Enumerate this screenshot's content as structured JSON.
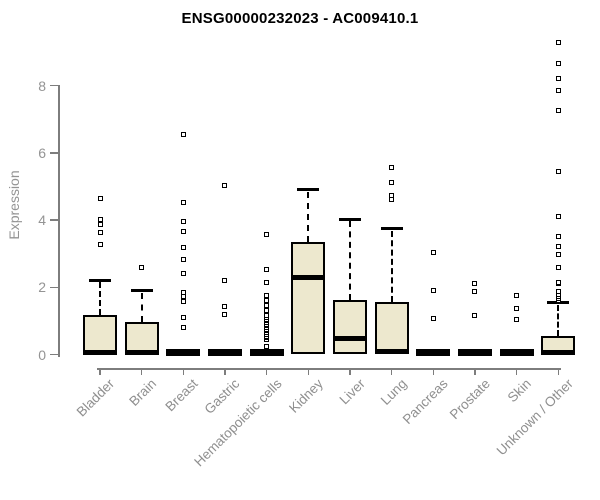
{
  "title": "ENSG00000232023 - AC009410.1",
  "colors": {
    "background": "#ffffff",
    "title": "#000000",
    "box_fill": "#EDE8CE",
    "box_border": "#000000",
    "median": "#000000",
    "whisker": "#000000",
    "outlier_fill": "#ffffff",
    "outlier_border": "#000000",
    "axis_line": "#7d7d7d",
    "tick_label": "#949494"
  },
  "chart_data": {
    "type": "boxplot",
    "title": "ENSG00000232023 - AC009410.1",
    "xlabel": "",
    "ylabel": "Expression",
    "ylim": [
      0,
      9.4
    ],
    "yticks": [
      0,
      2,
      4,
      6,
      8
    ],
    "grid": false,
    "legend": "none",
    "categories": [
      "Bladder",
      "Brain",
      "Breast",
      "Gastric",
      "Hematopoietic cells",
      "Kidney",
      "Liver",
      "Lung",
      "Pancreas",
      "Prostate",
      "Skin",
      "Unknown / Other"
    ],
    "series": [
      {
        "name": "Bladder",
        "collapsed": false,
        "whisker_low": 0,
        "q1": 0,
        "median": 0.07,
        "q3": 1.19,
        "whisker_high": 2.21,
        "outliers": [
          3.27,
          3.62,
          3.87,
          4.02,
          4.63
        ]
      },
      {
        "name": "Brain",
        "collapsed": false,
        "whisker_low": 0,
        "q1": 0,
        "median": 0.07,
        "q3": 0.96,
        "whisker_high": 1.9,
        "outliers": [
          2.58
        ]
      },
      {
        "name": "Breast",
        "collapsed": true,
        "whisker_low": 0,
        "q1": 0,
        "median": 0.03,
        "q3": 0.08,
        "whisker_high": 0.08,
        "outliers": [
          0.79,
          1.09,
          1.58,
          1.73,
          1.85,
          2.4,
          2.83,
          3.17,
          3.67,
          3.97,
          4.51,
          6.55
        ]
      },
      {
        "name": "Gastric",
        "collapsed": true,
        "whisker_low": 0,
        "q1": 0,
        "median": 0.03,
        "q3": 0.08,
        "whisker_high": 0.08,
        "outliers": [
          1.19,
          1.44,
          2.2,
          5.03
        ]
      },
      {
        "name": "Hematopoietic cells",
        "collapsed": true,
        "whisker_low": 0,
        "q1": 0,
        "median": 0.03,
        "q3": 0.08,
        "whisker_high": 0.08,
        "outliers": [
          0.25,
          0.45,
          0.5,
          0.55,
          0.6,
          0.65,
          0.7,
          0.75,
          0.8,
          0.85,
          0.9,
          0.95,
          1.0,
          1.05,
          1.1,
          1.15,
          1.3,
          1.45,
          1.6,
          1.75,
          2.13,
          2.53,
          3.57
        ]
      },
      {
        "name": "Kidney",
        "collapsed": false,
        "whisker_low": 0,
        "q1": 0,
        "median": 2.28,
        "q3": 3.36,
        "whisker_high": 4.9,
        "outliers": []
      },
      {
        "name": "Liver",
        "collapsed": false,
        "whisker_low": 0,
        "q1": 0,
        "median": 0.47,
        "q3": 1.62,
        "whisker_high": 4.02,
        "outliers": []
      },
      {
        "name": "Lung",
        "collapsed": false,
        "whisker_low": 0,
        "q1": 0,
        "median": 0.08,
        "q3": 1.56,
        "whisker_high": 3.75,
        "outliers": [
          4.6,
          4.73,
          5.11,
          5.56
        ]
      },
      {
        "name": "Pancreas",
        "collapsed": true,
        "whisker_low": 0,
        "q1": 0,
        "median": 0.03,
        "q3": 0.08,
        "whisker_high": 0.08,
        "outliers": [
          1.07,
          1.9,
          3.03
        ]
      },
      {
        "name": "Prostate",
        "collapsed": true,
        "whisker_low": 0,
        "q1": 0,
        "median": 0.03,
        "q3": 0.08,
        "whisker_high": 0.08,
        "outliers": [
          1.16,
          1.88,
          2.1
        ]
      },
      {
        "name": "Skin",
        "collapsed": true,
        "whisker_low": 0,
        "q1": 0,
        "median": 0.03,
        "q3": 0.08,
        "whisker_high": 0.08,
        "outliers": [
          1.04,
          1.37,
          1.76
        ]
      },
      {
        "name": "Unknown / Other",
        "collapsed": false,
        "whisker_low": 0,
        "q1": 0,
        "median": 0.07,
        "q3": 0.55,
        "whisker_high": 1.54,
        "outliers": [
          1.6,
          1.66,
          1.72,
          1.79,
          1.88,
          2.1,
          2.15,
          2.6,
          2.98,
          3.22,
          3.52,
          4.12,
          5.46,
          7.26,
          7.86,
          8.2,
          8.65,
          9.29
        ]
      }
    ]
  }
}
